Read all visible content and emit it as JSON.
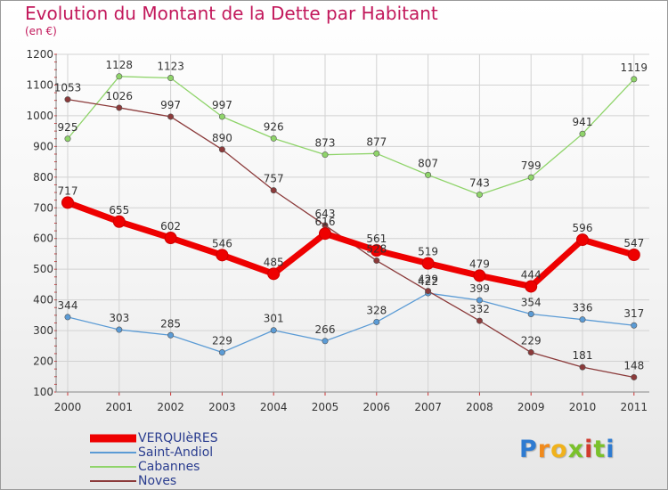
{
  "title": "Evolution du Montant de la Dette par Habitant",
  "subtitle": "(en €)",
  "logo": {
    "letters": [
      "P",
      "r",
      "o",
      "x",
      "i",
      "t",
      "i"
    ],
    "colors": [
      "#2e7bd1",
      "#f08a1c",
      "#f0b21c",
      "#7ac12b",
      "#d13b2e",
      "#7ac12b",
      "#2e7bd1"
    ]
  },
  "chart_data": {
    "type": "line",
    "x": [
      "2000",
      "2001",
      "2002",
      "2003",
      "2004",
      "2005",
      "2006",
      "2007",
      "2008",
      "2009",
      "2010",
      "2011"
    ],
    "ylim": [
      100,
      1200
    ],
    "yticks": [
      "100",
      "200",
      "300",
      "400",
      "500",
      "600",
      "700",
      "800",
      "900",
      "1000",
      "1100",
      "1200"
    ],
    "grid": true,
    "legend_position": "bottom-left",
    "series": [
      {
        "name": "VERQUIèRES",
        "color": "#ee0000",
        "values": [
          717,
          655,
          602,
          546,
          485,
          616,
          561,
          519,
          479,
          444,
          596,
          547
        ],
        "labels": [
          "717",
          "655",
          "602",
          "546",
          "485",
          "616",
          "561",
          "519",
          "479",
          "444",
          "596",
          "547"
        ]
      },
      {
        "name": "Saint-Andiol",
        "color": "#5b9bd5",
        "values": [
          344,
          303,
          285,
          229,
          301,
          266,
          328,
          422,
          399,
          354,
          336,
          317
        ],
        "labels": [
          "344",
          "303",
          "285",
          "229",
          "301",
          "266",
          "328",
          "422",
          "399",
          "354",
          "336",
          "317"
        ]
      },
      {
        "name": "Cabannes",
        "color": "#8fd46a",
        "values": [
          925,
          1128,
          1123,
          997,
          926,
          873,
          877,
          807,
          743,
          799,
          941,
          1119
        ],
        "labels": [
          "925",
          "1128",
          "1123",
          "997",
          "926",
          "873",
          "877",
          "807",
          "743",
          "799",
          "941",
          "1119"
        ]
      },
      {
        "name": "Noves",
        "color": "#8b3a3a",
        "values": [
          1053,
          1026,
          997,
          890,
          757,
          643,
          528,
          429,
          332,
          229,
          181,
          148
        ],
        "labels": [
          "1053",
          "1026",
          "997",
          "890",
          "757",
          "643",
          "528",
          "429",
          "332",
          "229",
          "181",
          "148"
        ]
      }
    ]
  }
}
